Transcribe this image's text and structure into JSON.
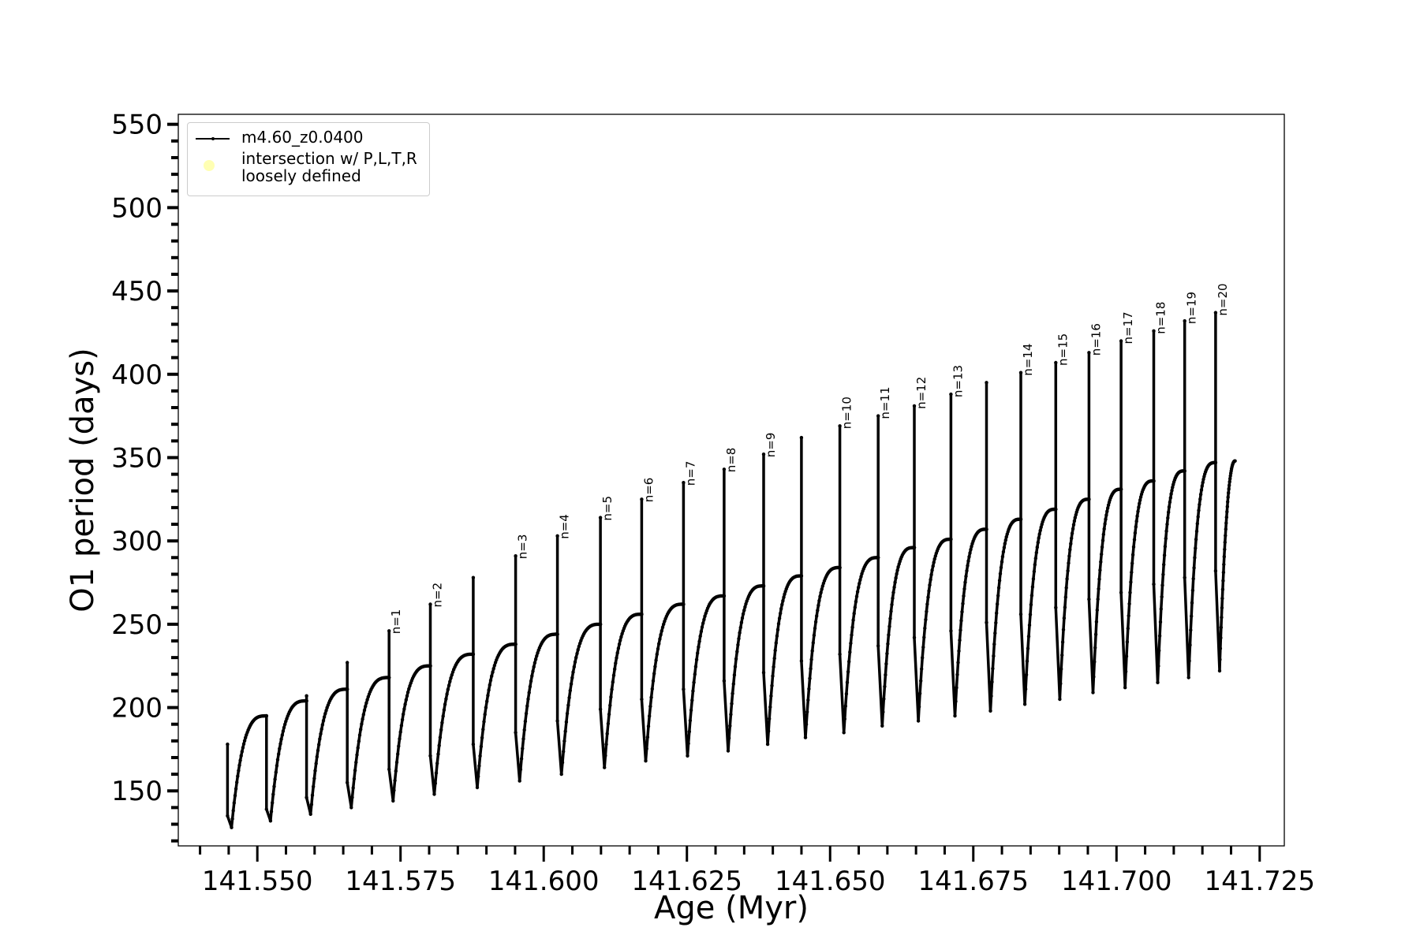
{
  "chart_data": {
    "type": "line",
    "xlabel": "Age (Myr)",
    "ylabel": "O1 period (days)",
    "xlim": [
      141.5362,
      141.7293
    ],
    "ylim": [
      117,
      556
    ],
    "x_ticks": [
      "141.550",
      "141.575",
      "141.600",
      "141.625",
      "141.650",
      "141.675",
      "141.700",
      "141.725"
    ],
    "x_tick_values": [
      141.55,
      141.575,
      141.6,
      141.625,
      141.65,
      141.675,
      141.7,
      141.725
    ],
    "y_ticks": [
      "150",
      "200",
      "250",
      "300",
      "350",
      "400",
      "450",
      "500",
      "550"
    ],
    "y_tick_values": [
      150,
      200,
      250,
      300,
      350,
      400,
      450,
      500,
      550
    ],
    "grid": false,
    "legend_position": "top-left",
    "legend": [
      {
        "label": "m4.60_z0.0400",
        "color": "#000000",
        "marker": "line-with-dots"
      },
      {
        "label": "intersection w/ P,L,T,R\nloosely defined",
        "color": "#ffffb3",
        "marker": "circle"
      }
    ],
    "series": [
      {
        "name": "m4.60_z0.0400",
        "color": "#000000",
        "pulse_ages": [
          141.5448,
          141.5516,
          141.5586,
          141.5657,
          141.573,
          141.5802,
          141.5877,
          141.5951,
          141.6024,
          141.6099,
          141.6171,
          141.6244,
          141.6315,
          141.6384,
          141.645,
          141.6517,
          141.6584,
          141.6647,
          141.6711,
          141.6773,
          141.6833,
          141.6894,
          141.6952,
          141.7008,
          141.7065,
          141.7119,
          141.7173
        ],
        "peak_periods": [
          178,
          195,
          207,
          227,
          246,
          262,
          278,
          291,
          303,
          314,
          325,
          335,
          343,
          352,
          362,
          369,
          375,
          381,
          388,
          395,
          401,
          407,
          413,
          420,
          426,
          432,
          437
        ],
        "post_pulse_periods": [
          135,
          139,
          146,
          155,
          163,
          171,
          178,
          185,
          192,
          199,
          205,
          211,
          216,
          221,
          228,
          232,
          237,
          242,
          246,
          251,
          256,
          260,
          265,
          269,
          274,
          278,
          282
        ],
        "min_periods": [
          128,
          132,
          136,
          140,
          144,
          148,
          152,
          156,
          160,
          164,
          168,
          171,
          174,
          178,
          182,
          185,
          189,
          192,
          195,
          198,
          202,
          205,
          209,
          212,
          215,
          218,
          222
        ],
        "pre_pulse_periods": [
          null,
          195,
          204,
          211,
          218,
          225,
          232,
          238,
          244,
          250,
          256,
          262,
          267,
          273,
          279,
          284,
          290,
          296,
          301,
          307,
          313,
          319,
          325,
          331,
          336,
          342,
          347
        ],
        "end": {
          "age": 141.7207,
          "period": 348
        }
      }
    ],
    "annotations": [
      {
        "text": "n=1",
        "pulse": 4
      },
      {
        "text": "n=2",
        "pulse": 5
      },
      {
        "text": "n=3",
        "pulse": 7
      },
      {
        "text": "n=4",
        "pulse": 8
      },
      {
        "text": "n=5",
        "pulse": 9
      },
      {
        "text": "n=6",
        "pulse": 10
      },
      {
        "text": "n=7",
        "pulse": 11
      },
      {
        "text": "n=8",
        "pulse": 12
      },
      {
        "text": "n=9",
        "pulse": 13
      },
      {
        "text": "n=10",
        "pulse": 15
      },
      {
        "text": "n=11",
        "pulse": 16
      },
      {
        "text": "n=12",
        "pulse": 17
      },
      {
        "text": "n=13",
        "pulse": 18
      },
      {
        "text": "n=14",
        "pulse": 20
      },
      {
        "text": "n=15",
        "pulse": 21
      },
      {
        "text": "n=16",
        "pulse": 22
      },
      {
        "text": "n=17",
        "pulse": 23
      },
      {
        "text": "n=18",
        "pulse": 24
      },
      {
        "text": "n=19",
        "pulse": 25
      },
      {
        "text": "n=20",
        "pulse": 26
      }
    ]
  }
}
